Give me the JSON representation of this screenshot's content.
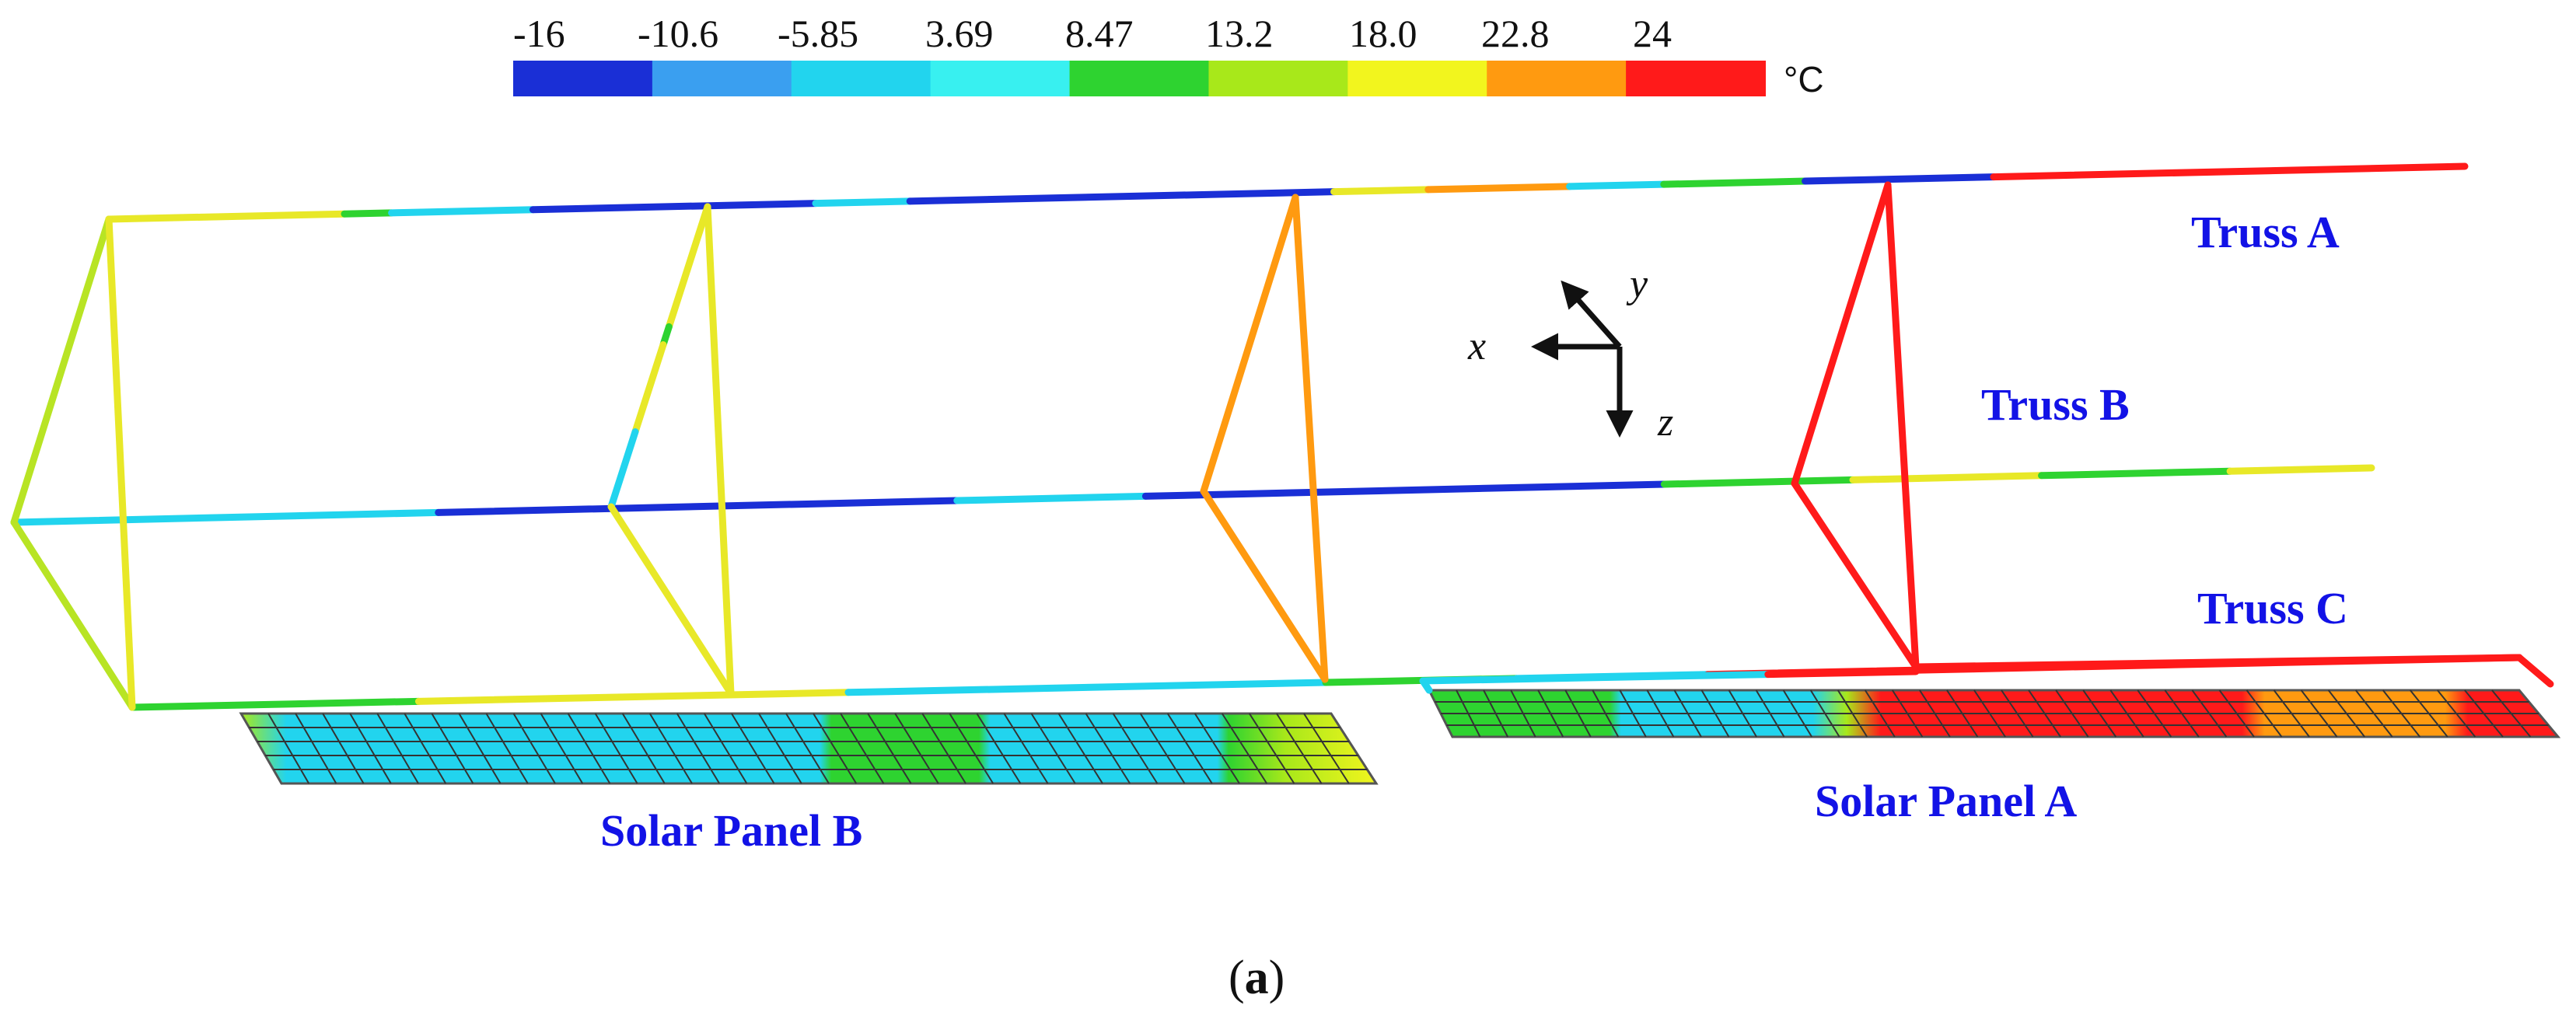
{
  "legend": {
    "unit": "°C",
    "ticks": [
      "-16",
      "-10.6",
      "-5.85",
      "3.69",
      "8.47",
      "13.2",
      "18.0",
      "22.8",
      "24"
    ],
    "colors": [
      "#1a2fd6",
      "#3a9ff0",
      "#22d4ee",
      "#38f0f0",
      "#2ed330",
      "#a8e81a",
      "#f2f51e",
      "#ff9a10",
      "#ff1a1a"
    ]
  },
  "labels": {
    "truss_a": "Truss A",
    "truss_b": "Truss B",
    "truss_c": "Truss C",
    "panel_a": "Solar Panel A",
    "panel_b": "Solar Panel B"
  },
  "axes": {
    "x": "x",
    "y": "y",
    "z": "z"
  },
  "caption": {
    "open": "(",
    "letter": "a",
    "close": ")"
  },
  "colors": {
    "label_blue": "#1212e6",
    "cold": "#1a2fd6",
    "cyan": "#22d4ee",
    "green": "#2ed330",
    "yellow": "#e8e828",
    "orange": "#ff9a10",
    "red": "#ff1a1a"
  }
}
